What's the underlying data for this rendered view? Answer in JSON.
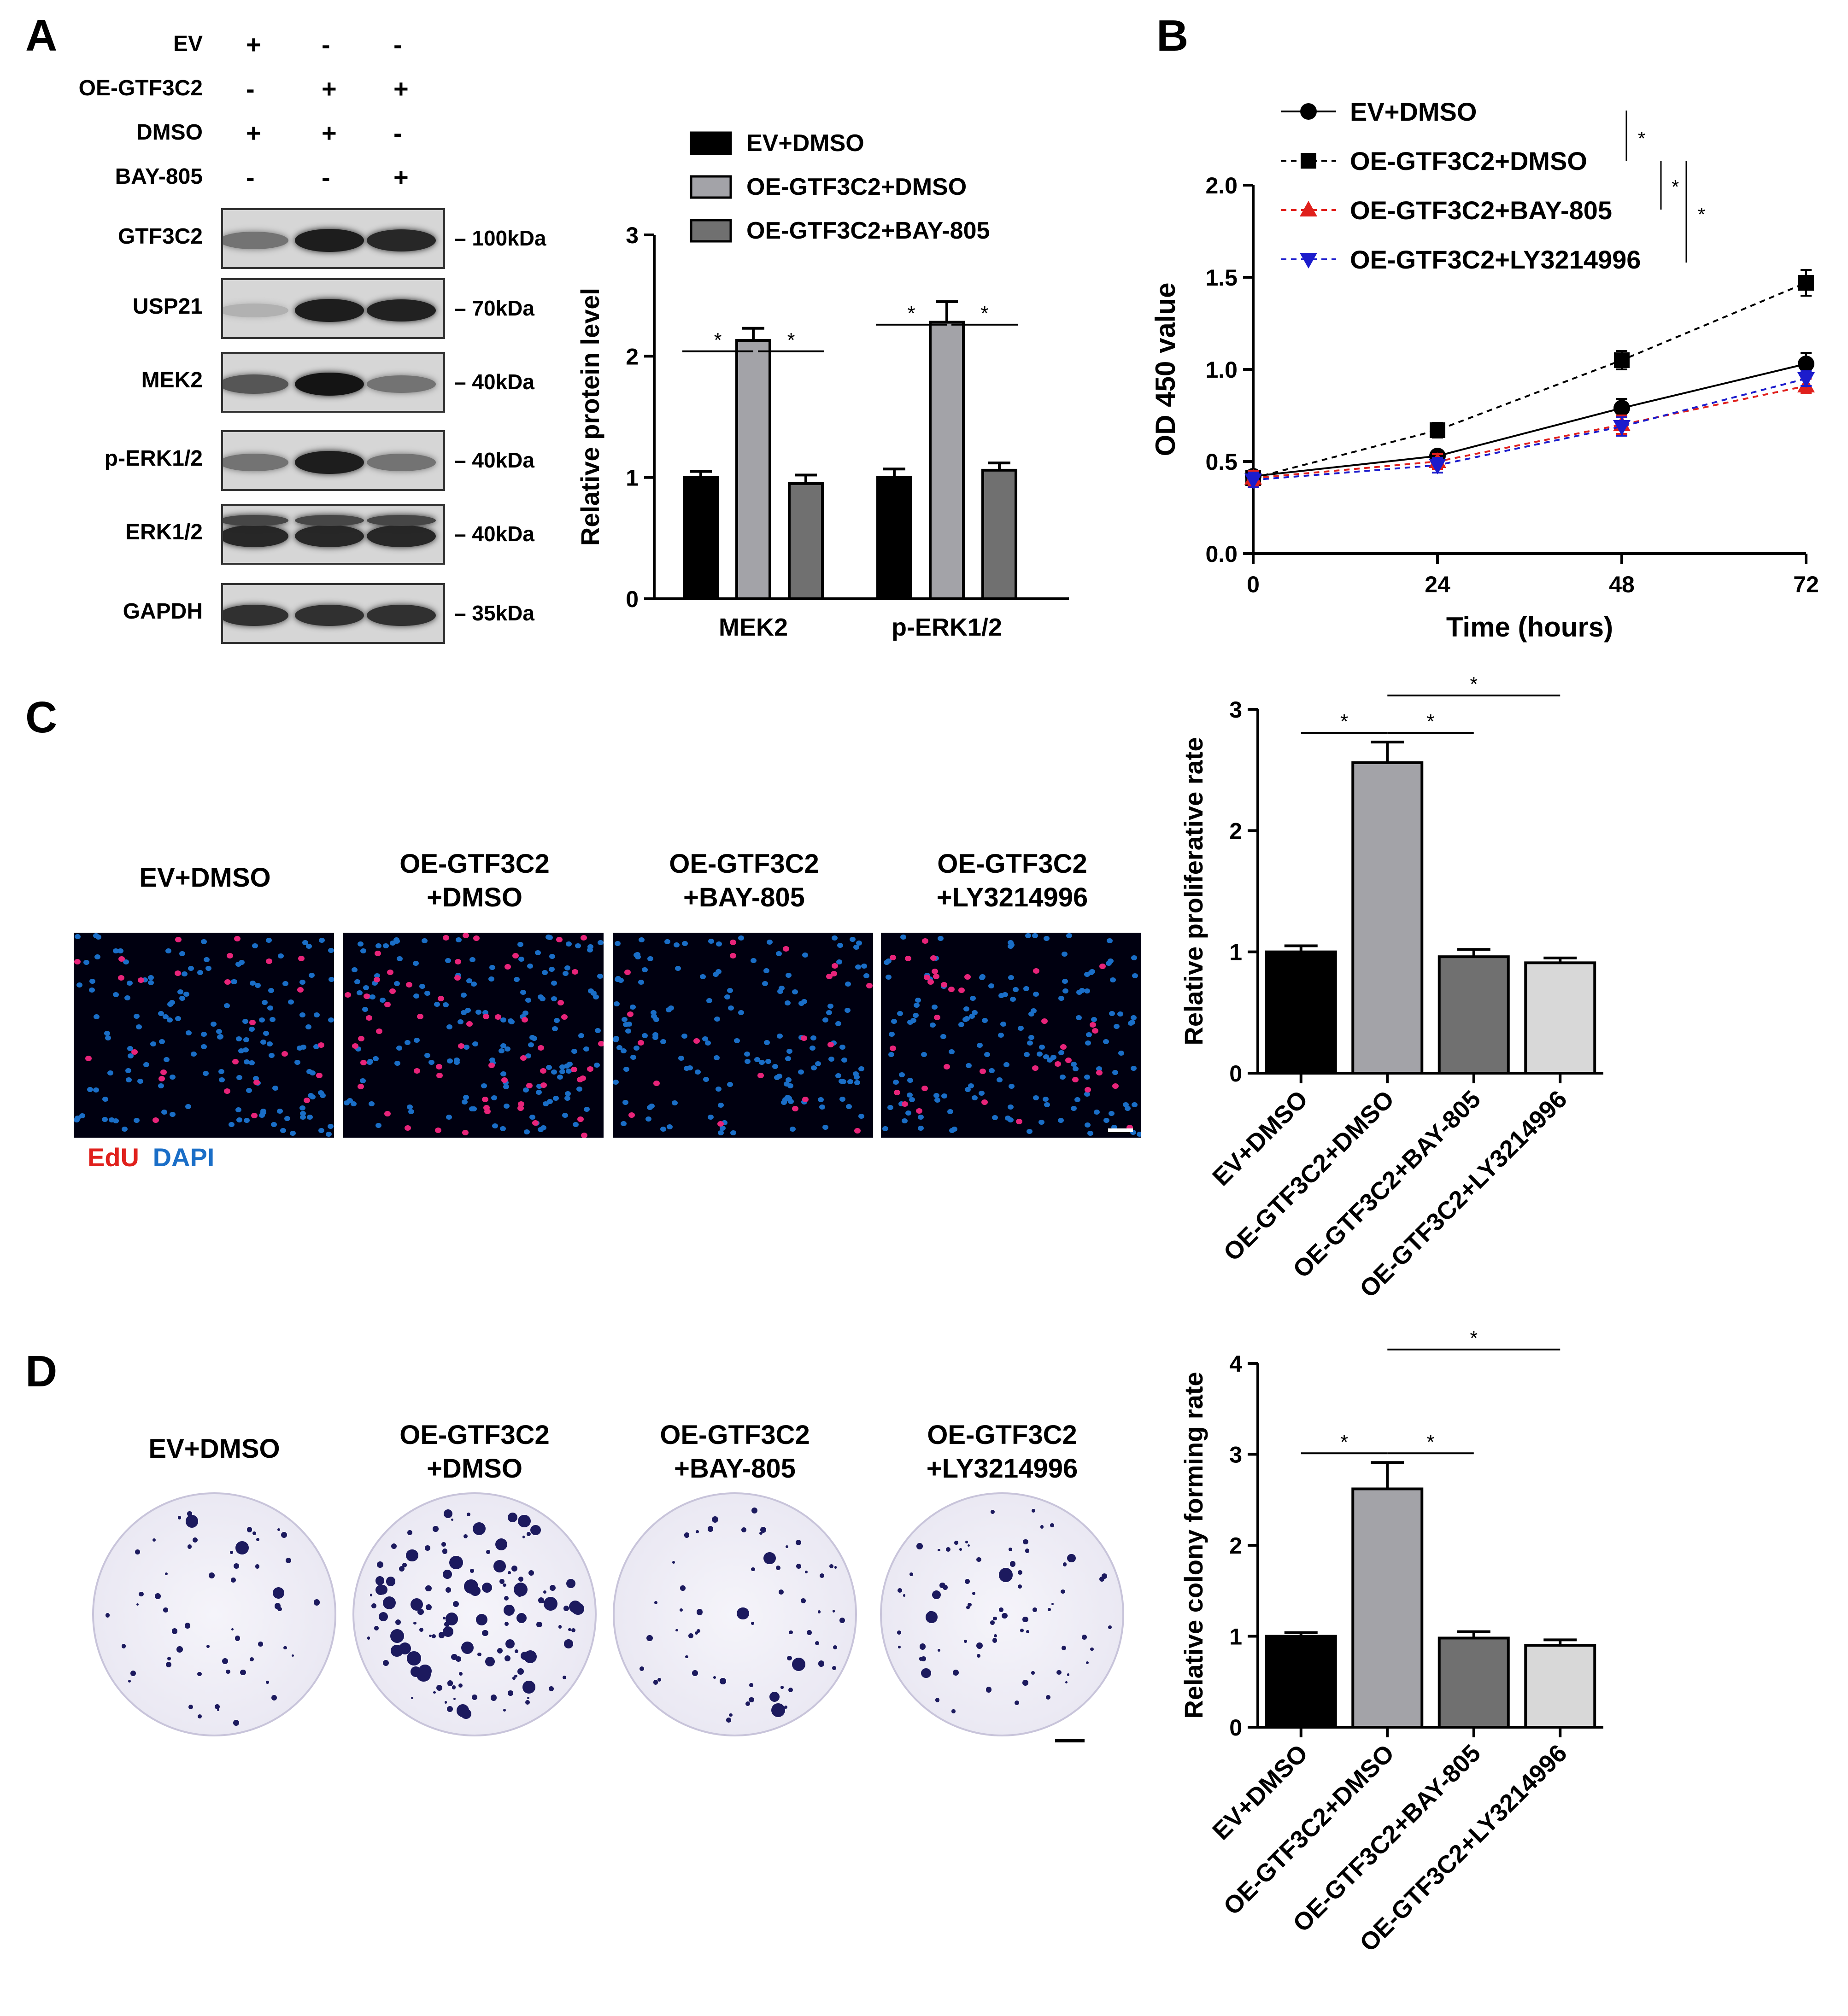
{
  "panels": {
    "a": "A",
    "b": "B",
    "c": "C",
    "d": "D"
  },
  "western": {
    "conditions": [
      {
        "label": "EV",
        "signs": [
          "+",
          "-",
          "-"
        ]
      },
      {
        "label": "OE-GTF3C2",
        "signs": [
          "-",
          "+",
          "+"
        ]
      },
      {
        "label": "DMSO",
        "signs": [
          "+",
          "+",
          "-"
        ]
      },
      {
        "label": "BAY-805",
        "signs": [
          "-",
          "-",
          "+"
        ]
      }
    ],
    "blots": [
      {
        "name": "GTF3C2",
        "mw": "100kDa",
        "intensity": [
          0.45,
          0.9,
          0.85
        ]
      },
      {
        "name": "USP21",
        "mw": "70kDa",
        "intensity": [
          0.12,
          0.9,
          0.88
        ]
      },
      {
        "name": "MEK2",
        "mw": "40kDa",
        "intensity": [
          0.6,
          0.95,
          0.45
        ]
      },
      {
        "name": "p-ERK1/2",
        "mw": "40kDa",
        "intensity": [
          0.45,
          0.9,
          0.45
        ]
      },
      {
        "name": "ERK1/2",
        "mw": "40kDa",
        "intensity": [
          0.85,
          0.85,
          0.85
        ]
      },
      {
        "name": "GAPDH",
        "mw": "35kDa",
        "intensity": [
          0.8,
          0.8,
          0.8
        ]
      }
    ]
  },
  "micrographs": {
    "captions": [
      "EV+DMSO",
      "OE-GTF3C2\n+DMSO",
      "OE-GTF3C2\n+BAY-805",
      "OE-GTF3C2\n+LY3214996"
    ],
    "stain_edu": "EdU",
    "stain_dapi": "DAPI",
    "edu_color": "#e8247a",
    "dapi_color": "#1a6ec7"
  },
  "colonies": {
    "captions": [
      "EV+DMSO",
      "OE-GTF3C2\n+DMSO",
      "OE-GTF3C2\n+BAY-805",
      "OE-GTF3C2\n+LY3214996"
    ],
    "colony_color": "#1c1a5e"
  },
  "chart_data": [
    {
      "id": "A-bar",
      "type": "bar",
      "categories": [
        "MEK2",
        "p-ERK1/2"
      ],
      "series": [
        {
          "name": "EV+DMSO",
          "values": [
            1.0,
            1.0
          ],
          "errors": [
            0.05,
            0.07
          ],
          "color": "#000000"
        },
        {
          "name": "OE-GTF3C2+DMSO",
          "values": [
            2.13,
            2.28
          ],
          "errors": [
            0.1,
            0.17
          ],
          "color": "#a3a3a8"
        },
        {
          "name": "OE-GTF3C2+BAY-805",
          "values": [
            0.95,
            1.06
          ],
          "errors": [
            0.07,
            0.06
          ],
          "color": "#707070"
        }
      ],
      "ylabel": "Relative protein level",
      "ylim": [
        0,
        3
      ],
      "yticks": [
        "0",
        "1",
        "2",
        "3"
      ],
      "significance": "*",
      "legend": "top"
    },
    {
      "id": "B-line",
      "type": "line",
      "x": [
        0,
        24,
        48,
        72
      ],
      "xticks": [
        "0",
        "24",
        "48",
        "72"
      ],
      "xlabel": "Time (hours)",
      "ylabel": "OD 450 value",
      "ylim": [
        0.0,
        2.0
      ],
      "yticks": [
        "0.0",
        "0.5",
        "1.0",
        "1.5",
        "2.0"
      ],
      "series": [
        {
          "name": "EV+DMSO",
          "values": [
            0.42,
            0.53,
            0.79,
            1.03
          ],
          "errors": [
            0.03,
            0.03,
            0.05,
            0.06
          ],
          "color": "#000000",
          "marker": "circle",
          "dash": false
        },
        {
          "name": "OE-GTF3C2+DMSO",
          "values": [
            0.41,
            0.67,
            1.05,
            1.47
          ],
          "errors": [
            0.03,
            0.04,
            0.05,
            0.07
          ],
          "color": "#000000",
          "marker": "square",
          "dash": true
        },
        {
          "name": "OE-GTF3C2+BAY-805",
          "values": [
            0.41,
            0.5,
            0.7,
            0.91
          ],
          "errors": [
            0.04,
            0.04,
            0.05,
            0.04
          ],
          "color": "#e0201c",
          "marker": "triangle-up",
          "dash": true
        },
        {
          "name": "OE-GTF3C2+LY3214996",
          "values": [
            0.4,
            0.48,
            0.69,
            0.95
          ],
          "errors": [
            0.04,
            0.04,
            0.05,
            0.04
          ],
          "color": "#1c1ccc",
          "marker": "triangle-down",
          "dash": true
        }
      ],
      "significance": "*",
      "legend": "top-left"
    },
    {
      "id": "C-bar",
      "type": "bar",
      "categories": [
        "EV+DMSO",
        "OE-GTF3C2+DMSO",
        "OE-GTF3C2+BAY-805",
        "OE-GTF3C2+LY3214996"
      ],
      "values": [
        1.0,
        2.56,
        0.96,
        0.91
      ],
      "errors": [
        0.05,
        0.17,
        0.06,
        0.04
      ],
      "colors": [
        "#000000",
        "#a3a3a8",
        "#707070",
        "#d8d8d8"
      ],
      "ylabel": "Relative proliferative rate",
      "ylim": [
        0,
        3
      ],
      "yticks": [
        "0",
        "1",
        "2",
        "3"
      ],
      "significance": "*"
    },
    {
      "id": "D-bar",
      "type": "bar",
      "categories": [
        "EV+DMSO",
        "OE-GTF3C2+DMSO",
        "OE-GTF3C2+BAY-805",
        "OE-GTF3C2+LY3214996"
      ],
      "values": [
        1.0,
        2.62,
        0.98,
        0.9
      ],
      "errors": [
        0.04,
        0.29,
        0.07,
        0.06
      ],
      "colors": [
        "#000000",
        "#a3a3a8",
        "#707070",
        "#d8d8d8"
      ],
      "ylabel": "Relative colony forming rate",
      "ylim": [
        0,
        4
      ],
      "yticks": [
        "0",
        "1",
        "2",
        "3",
        "4"
      ],
      "significance": "*"
    }
  ]
}
